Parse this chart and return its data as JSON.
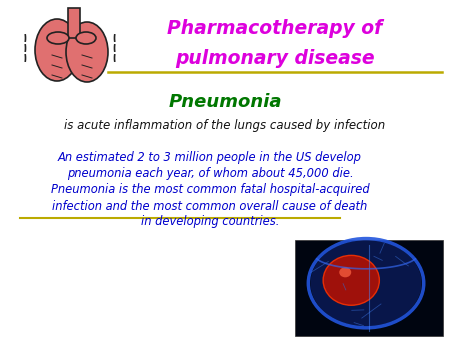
{
  "bg_color": "#ffffff",
  "title_line1": "Pharmacotherapy of",
  "title_line2": "pulmonary disease",
  "title_color": "#dd00dd",
  "separator_color": "#bbaa00",
  "subtitle": "Pneumonia",
  "subtitle_color": "#007700",
  "body1": "is acute inflammation of the lungs caused by infection",
  "body1_color": "#111111",
  "body2_lines": [
    "An estimated 2 to 3 million people in the US develop",
    "pneumonia each year, of whom about 45,000 die.",
    "Pneumonia is the most common fatal hospital-acquired",
    "infection and the most common overall cause of death",
    "in developing countries."
  ],
  "body2_color": "#0000cc",
  "figsize": [
    4.5,
    3.38
  ],
  "dpi": 100,
  "lung_color": "#e07070",
  "lung_edge": "#222222",
  "xray_bg": "#000510",
  "xray_red": "#cc1100",
  "xray_blue": "#1133aa"
}
